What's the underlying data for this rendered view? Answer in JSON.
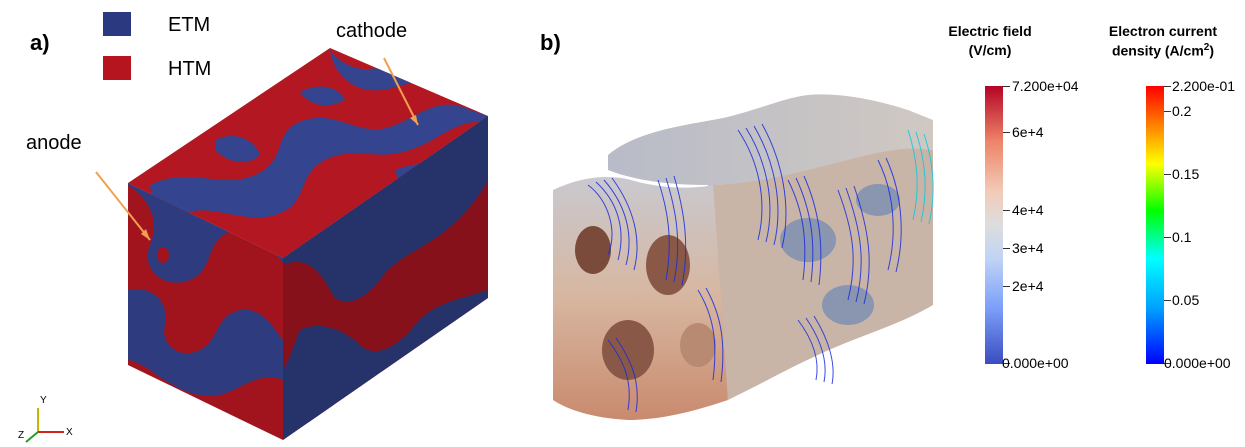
{
  "panel_a": {
    "label": "a)",
    "legend": [
      {
        "label": "ETM",
        "color": "#2b3a80"
      },
      {
        "label": "HTM",
        "color": "#b5151f"
      }
    ],
    "annotations": {
      "anode": "anode",
      "cathode": "cathode"
    },
    "arrow_color": "#f0a050",
    "axes": {
      "y": "Y",
      "z": "Z",
      "x": "X"
    }
  },
  "panel_b": {
    "label": "b)",
    "colorbars": [
      {
        "title_line1": "Electric field",
        "title_line2": "(V/cm)",
        "max_label": "7.200e+04",
        "min_label": "0.000e+00",
        "ticks": [
          "6e+4",
          "4e+4",
          "3e+4",
          "2e+4"
        ],
        "colormap": [
          "#3b4cc0",
          "#7b9ff9",
          "#c0d4f5",
          "#dddddd",
          "#f2cbb7",
          "#ee8468",
          "#b40426"
        ]
      },
      {
        "title_line1": "Electron current",
        "title_line2_prefix": "density (A/cm",
        "title_line2_sup": "2",
        "title_line2_suffix": ")",
        "max_label": "2.200e-01",
        "min_label": "0.000e+00",
        "ticks": [
          "0.2",
          "0.15",
          "0.1",
          "0.05"
        ],
        "colormap": [
          "#0000ff",
          "#00a0ff",
          "#00ffff",
          "#00ff00",
          "#ffff00",
          "#ff8000",
          "#ff0000"
        ]
      }
    ]
  }
}
